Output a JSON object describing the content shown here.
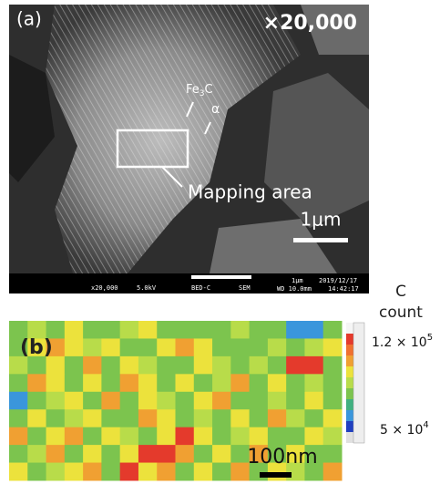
{
  "panel_a": {
    "label": "(a)",
    "magnification": "×20,000",
    "fe3c": {
      "base": "Fe",
      "sub": "3",
      "tail": "C"
    },
    "alpha": "α",
    "mapping_area": "Mapping area",
    "scale": "1μm",
    "footer": {
      "mag": "x20,000",
      "kv": "5.0kV",
      "detector": "BED-C",
      "mode": "SEM",
      "scale": "1μm",
      "date": "2019/12/17",
      "wd": "WD 10.0mm",
      "time": "14:42:17"
    }
  },
  "panel_b": {
    "label": "(b)",
    "scale": "100nm",
    "legend_title": "C",
    "legend_unit": "count",
    "legend_high": {
      "base": "1.2 × 10",
      "exp": "5"
    },
    "legend_low": {
      "base": "5 × 10",
      "exp": "4"
    }
  }
}
